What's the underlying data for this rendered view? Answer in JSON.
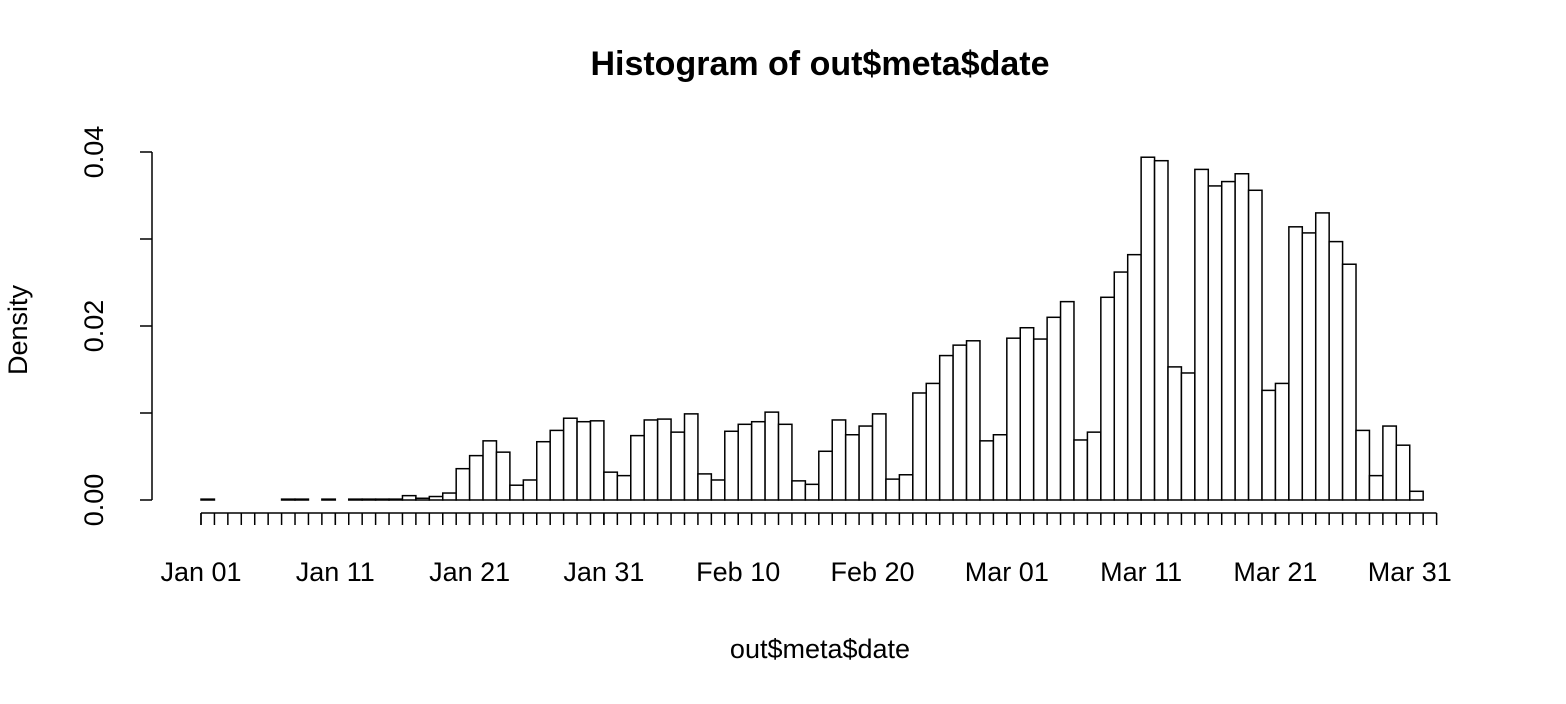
{
  "chart_data": {
    "type": "histogram",
    "title": "Histogram of out$meta$date",
    "xlabel": "out$meta$date",
    "ylabel": "Density",
    "bins": [
      0,
      1,
      2,
      3,
      4,
      5,
      6,
      7,
      8,
      9,
      10,
      11,
      12,
      13,
      14,
      15,
      16,
      17,
      18,
      19,
      20,
      21,
      22,
      23,
      24,
      25,
      26,
      27,
      28,
      29,
      30,
      31,
      32,
      33,
      34,
      35,
      36,
      37,
      38,
      39,
      40,
      41,
      42,
      43,
      44,
      45,
      46,
      47,
      48,
      49,
      50,
      51,
      52,
      53,
      54,
      55,
      56,
      57,
      58,
      59,
      60,
      61,
      62,
      63,
      64,
      65,
      66,
      67,
      68,
      69,
      70,
      71,
      72,
      73,
      74,
      75,
      76,
      77,
      78,
      79,
      80,
      81,
      82,
      83,
      84,
      85,
      86,
      87,
      88,
      89,
      90,
      91
    ],
    "values": [
      0.0001,
      0,
      0,
      0,
      0,
      0,
      0.0001,
      0.0001,
      0,
      0.0001,
      0,
      0.0001,
      0.0001,
      0.0001,
      0.0001,
      0.0005,
      0.0002,
      0.0004,
      0.0008,
      0.0036,
      0.0051,
      0.0068,
      0.0055,
      0.0017,
      0.0023,
      0.0067,
      0.008,
      0.0094,
      0.009,
      0.0091,
      0.0032,
      0.0028,
      0.0074,
      0.0092,
      0.0093,
      0.0078,
      0.0099,
      0.003,
      0.0023,
      0.0079,
      0.0087,
      0.009,
      0.0101,
      0.0087,
      0.0022,
      0.0018,
      0.0056,
      0.0092,
      0.0075,
      0.0085,
      0.0099,
      0.0024,
      0.0029,
      0.0123,
      0.0134,
      0.0166,
      0.0178,
      0.0183,
      0.0068,
      0.0075,
      0.0186,
      0.0198,
      0.0185,
      0.021,
      0.0228,
      0.0069,
      0.0078,
      0.0233,
      0.0262,
      0.0282,
      0.0394,
      0.039,
      0.0153,
      0.0146,
      0.038,
      0.0361,
      0.0366,
      0.0375,
      0.0356,
      0.0126,
      0.0134,
      0.0314,
      0.0307,
      0.033,
      0.0297,
      0.0271,
      0.008,
      0.0028,
      0.0085,
      0.0063,
      0.001
    ],
    "color": "#ffffff",
    "xlim": [
      0,
      92
    ],
    "xticks": [
      {
        "value": 0,
        "label": "Jan 01"
      },
      {
        "value": 10,
        "label": "Jan 11"
      },
      {
        "value": 20,
        "label": "Jan 21"
      },
      {
        "value": 30,
        "label": "Jan 31"
      },
      {
        "value": 40,
        "label": "Feb 10"
      },
      {
        "value": 50,
        "label": "Feb 20"
      },
      {
        "value": 60,
        "label": "Mar 01"
      },
      {
        "value": 70,
        "label": "Mar 11"
      },
      {
        "value": 80,
        "label": "Mar 21"
      },
      {
        "value": 90,
        "label": "Mar 31"
      }
    ],
    "xminorticks": [
      0,
      1,
      2,
      3,
      4,
      5,
      6,
      7,
      8,
      9,
      10,
      11,
      12,
      13,
      14,
      15,
      16,
      17,
      18,
      19,
      20,
      21,
      22,
      23,
      24,
      25,
      26,
      27,
      28,
      29,
      30,
      31,
      32,
      33,
      34,
      35,
      36,
      37,
      38,
      39,
      40,
      41,
      42,
      43,
      44,
      45,
      46,
      47,
      48,
      49,
      50,
      51,
      52,
      53,
      54,
      55,
      56,
      57,
      58,
      59,
      60,
      61,
      62,
      63,
      64,
      65,
      66,
      67,
      68,
      69,
      70,
      71,
      72,
      73,
      74,
      75,
      76,
      77,
      78,
      79,
      80,
      81,
      82,
      83,
      84,
      85,
      86,
      87,
      88,
      89,
      90,
      91,
      92
    ],
    "ylim": [
      0,
      0.04
    ],
    "yticks": [
      {
        "value": 0,
        "label": "0.00"
      },
      {
        "value": 0.02,
        "label": "0.02"
      },
      {
        "value": 0.04,
        "label": "0.04"
      }
    ],
    "yminorticks": [
      0.01,
      0.03
    ],
    "grid": false
  }
}
